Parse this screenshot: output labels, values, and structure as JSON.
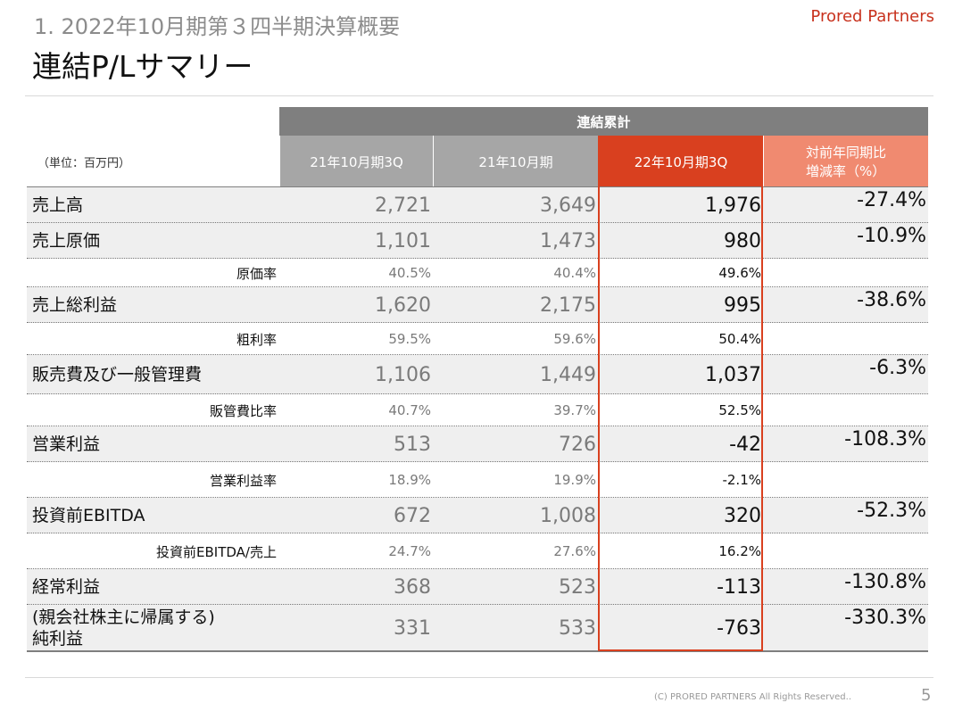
{
  "header": {
    "subtitle": "1.  2022年10月期第３四半期決算概要",
    "title": "連結P/Lサマリー",
    "logo": "Prored Partners"
  },
  "table": {
    "group_header": "連結累計",
    "unit": "（単位：百万円）",
    "columns": [
      "21年10月期3Q",
      "21年10月期",
      "22年10月期3Q",
      "対前年同期比\n増減率（%）"
    ],
    "rows": [
      {
        "label": "売上高",
        "cells": [
          "2,721",
          "3,649",
          "1,976",
          "-27.4%"
        ]
      },
      {
        "label": "売上原価",
        "cells": [
          "1,101",
          "1,473",
          "980",
          "-10.9%"
        ]
      },
      {
        "label": "原価率",
        "cells": [
          "40.5%",
          "40.4%",
          "49.6%"
        ]
      },
      {
        "label": "売上総利益",
        "cells": [
          "1,620",
          "2,175",
          "995",
          "-38.6%"
        ]
      },
      {
        "label": "粗利率",
        "cells": [
          "59.5%",
          "59.6%",
          "50.4%"
        ]
      },
      {
        "label": "販売費及び一般管理費",
        "cells": [
          "1,106",
          "1,449",
          "1,037",
          "-6.3%"
        ]
      },
      {
        "label": "販管費比率",
        "cells": [
          "40.7%",
          "39.7%",
          "52.5%"
        ]
      },
      {
        "label": "営業利益",
        "cells": [
          "513",
          "726",
          "-42",
          "-108.3%"
        ]
      },
      {
        "label": "営業利益率",
        "cells": [
          "18.9%",
          "19.9%",
          "-2.1%"
        ]
      },
      {
        "label": "投資前EBITDA",
        "cells": [
          "672",
          "1,008",
          "320",
          "-52.3%"
        ]
      },
      {
        "label": "投資前EBITDA/売上",
        "cells": [
          "24.7%",
          "27.6%",
          "16.2%"
        ]
      },
      {
        "label": "経常利益",
        "cells": [
          "368",
          "523",
          "-113",
          "-130.8%"
        ]
      },
      {
        "label": "(親会社株主に帰属する)\n純利益",
        "cells": [
          "331",
          "533",
          "-763",
          "-330.3%"
        ]
      }
    ]
  },
  "footer": {
    "copyright": "(C)   PRORED PARTNERS All Rights Reserved..",
    "page": "5"
  }
}
